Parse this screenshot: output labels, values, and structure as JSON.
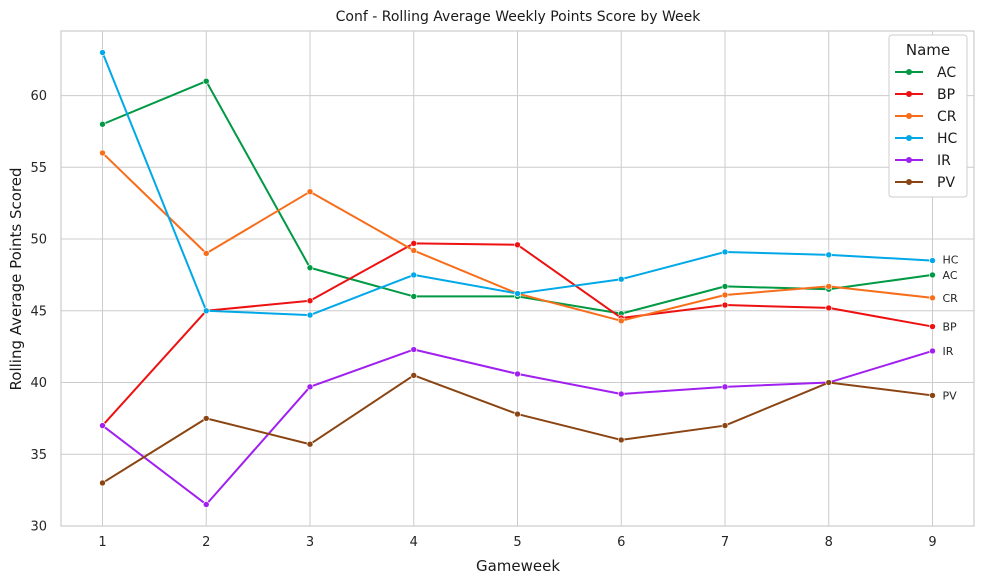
{
  "chart_data": {
    "type": "line",
    "title": "Conf - Rolling Average Weekly Points Score by Week",
    "xlabel": "Gameweek",
    "ylabel": "Rolling Average Points Scored",
    "x": [
      1,
      2,
      3,
      4,
      5,
      6,
      7,
      8,
      9
    ],
    "xlim": [
      0.6,
      9.4
    ],
    "ylim": [
      30,
      64.5
    ],
    "yticks": [
      30,
      35,
      40,
      45,
      50,
      55,
      60
    ],
    "grid": true,
    "legend": {
      "title": "Name",
      "placement": "top-right"
    },
    "series": [
      {
        "name": "AC",
        "color": "#009944",
        "values": [
          58,
          61,
          48,
          46,
          46,
          44.8,
          46.7,
          46.5,
          47.5
        ]
      },
      {
        "name": "BP",
        "color": "#ee1111",
        "values": [
          37,
          45,
          45.7,
          49.7,
          49.6,
          44.5,
          45.4,
          45.2,
          43.9
        ]
      },
      {
        "name": "CR",
        "color": "#f76d1a",
        "values": [
          56,
          49,
          53.3,
          49.2,
          46.2,
          44.3,
          46.1,
          46.7,
          45.9
        ]
      },
      {
        "name": "HC",
        "color": "#00a8e8",
        "values": [
          63,
          45,
          44.7,
          47.5,
          46.2,
          47.2,
          49.1,
          48.9,
          48.5
        ]
      },
      {
        "name": "IR",
        "color": "#a020f0",
        "values": [
          37,
          31.5,
          39.7,
          42.3,
          40.6,
          39.2,
          39.7,
          40,
          42.2
        ]
      },
      {
        "name": "PV",
        "color": "#8b4513",
        "values": [
          33,
          37.5,
          35.7,
          40.5,
          37.8,
          36,
          37,
          40,
          39.1
        ]
      }
    ],
    "end_labels": [
      "HC",
      "AC",
      "CR",
      "BP",
      "IR",
      "PV"
    ]
  }
}
